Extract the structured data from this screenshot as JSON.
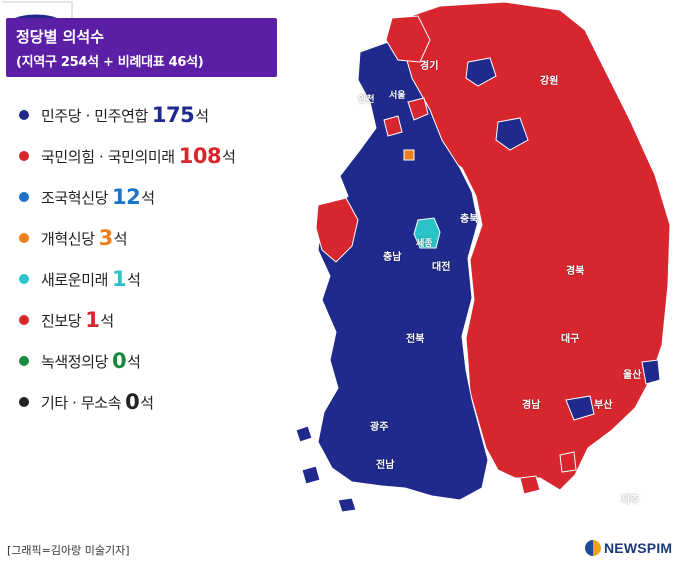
{
  "title": {
    "line1": "정당별 의석수",
    "line2": "(지역구 254석 + 비례대표 46석)"
  },
  "legend": [
    {
      "name": "민주당 · 민주연합",
      "seats": "175",
      "unit": "석",
      "color": "#1f2a8c"
    },
    {
      "name": "국민의힘 · 국민의미래",
      "seats": "108",
      "unit": "석",
      "color": "#d8262f"
    },
    {
      "name": "조국혁신당",
      "seats": "12",
      "unit": "석",
      "color": "#1c74c8"
    },
    {
      "name": "개혁신당",
      "seats": "3",
      "unit": "석",
      "color": "#ee7e1a"
    },
    {
      "name": "새로운미래",
      "seats": "1",
      "unit": "석",
      "color": "#2ac3c8"
    },
    {
      "name": "진보당",
      "seats": "1",
      "unit": "석",
      "color": "#d8262f"
    },
    {
      "name": "녹색정의당",
      "seats": "0",
      "unit": "석",
      "color": "#178a3c"
    },
    {
      "name": "기타 · 무소속",
      "seats": "0",
      "unit": "석",
      "color": "#222222"
    }
  ],
  "regions": {
    "gyeonggi": "경기",
    "gangwon": "강원",
    "incheon": "인천",
    "seoul": "서울",
    "chungbuk": "충북",
    "sejong": "세종",
    "chungnam": "충남",
    "daejeon": "대전",
    "gyeongbuk": "경북",
    "jeonbuk": "전북",
    "daegu": "대구",
    "ulsan": "울산",
    "gyeongnam": "경남",
    "busan": "부산",
    "gwangju": "광주",
    "jeonnam": "전남",
    "jeju": "제주"
  },
  "map_colors": {
    "democratic": "#1f2a8c",
    "ppp": "#d8262f",
    "reform": "#ee7e1a",
    "new_future": "#2ac3c8",
    "border": "#ffffff"
  },
  "credit": "[그래픽=김아랑 미술기자]",
  "logo": "NEWSPIM"
}
